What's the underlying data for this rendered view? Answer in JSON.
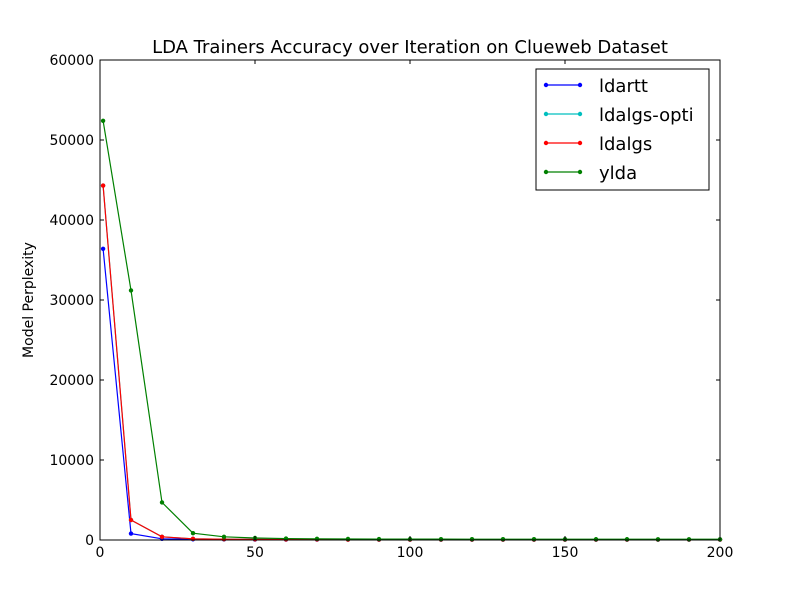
{
  "chart_data": {
    "type": "line",
    "title": "LDA Trainers Accuracy over Iteration on Clueweb Dataset",
    "xlabel": "",
    "ylabel": "Model Perplexity",
    "xlim": [
      0,
      200
    ],
    "ylim": [
      0,
      60000
    ],
    "xticks": [
      0,
      50,
      100,
      150,
      200
    ],
    "yticks": [
      0,
      10000,
      20000,
      30000,
      40000,
      50000,
      60000
    ],
    "grid": false,
    "legend_position": "top-right",
    "x": [
      1,
      10,
      20,
      30,
      40,
      50,
      60,
      70,
      80,
      90,
      100,
      110,
      120,
      130,
      140,
      150,
      160,
      170,
      180,
      190,
      200
    ],
    "series": [
      {
        "name": "ldartt",
        "color": "#0000ff",
        "values": [
          36400,
          800,
          150,
          90,
          70,
          60,
          55,
          50,
          48,
          46,
          45,
          44,
          43,
          42,
          42,
          41,
          41,
          40,
          40,
          40,
          40
        ]
      },
      {
        "name": "ldalgs-opti",
        "color": "#00bfbf",
        "values": [
          44300,
          2500,
          400,
          150,
          100,
          80,
          70,
          65,
          60,
          58,
          56,
          55,
          54,
          53,
          52,
          52,
          51,
          51,
          50,
          50,
          50
        ]
      },
      {
        "name": "ldalgs",
        "color": "#ff0000",
        "values": [
          44300,
          2500,
          400,
          150,
          100,
          80,
          70,
          65,
          60,
          58,
          56,
          55,
          54,
          53,
          52,
          52,
          51,
          51,
          50,
          50,
          50
        ]
      },
      {
        "name": "ylda",
        "color": "#008000",
        "values": [
          52400,
          31200,
          4700,
          850,
          400,
          250,
          180,
          150,
          130,
          120,
          110,
          105,
          100,
          98,
          96,
          95,
          94,
          93,
          92,
          91,
          90
        ]
      }
    ]
  }
}
